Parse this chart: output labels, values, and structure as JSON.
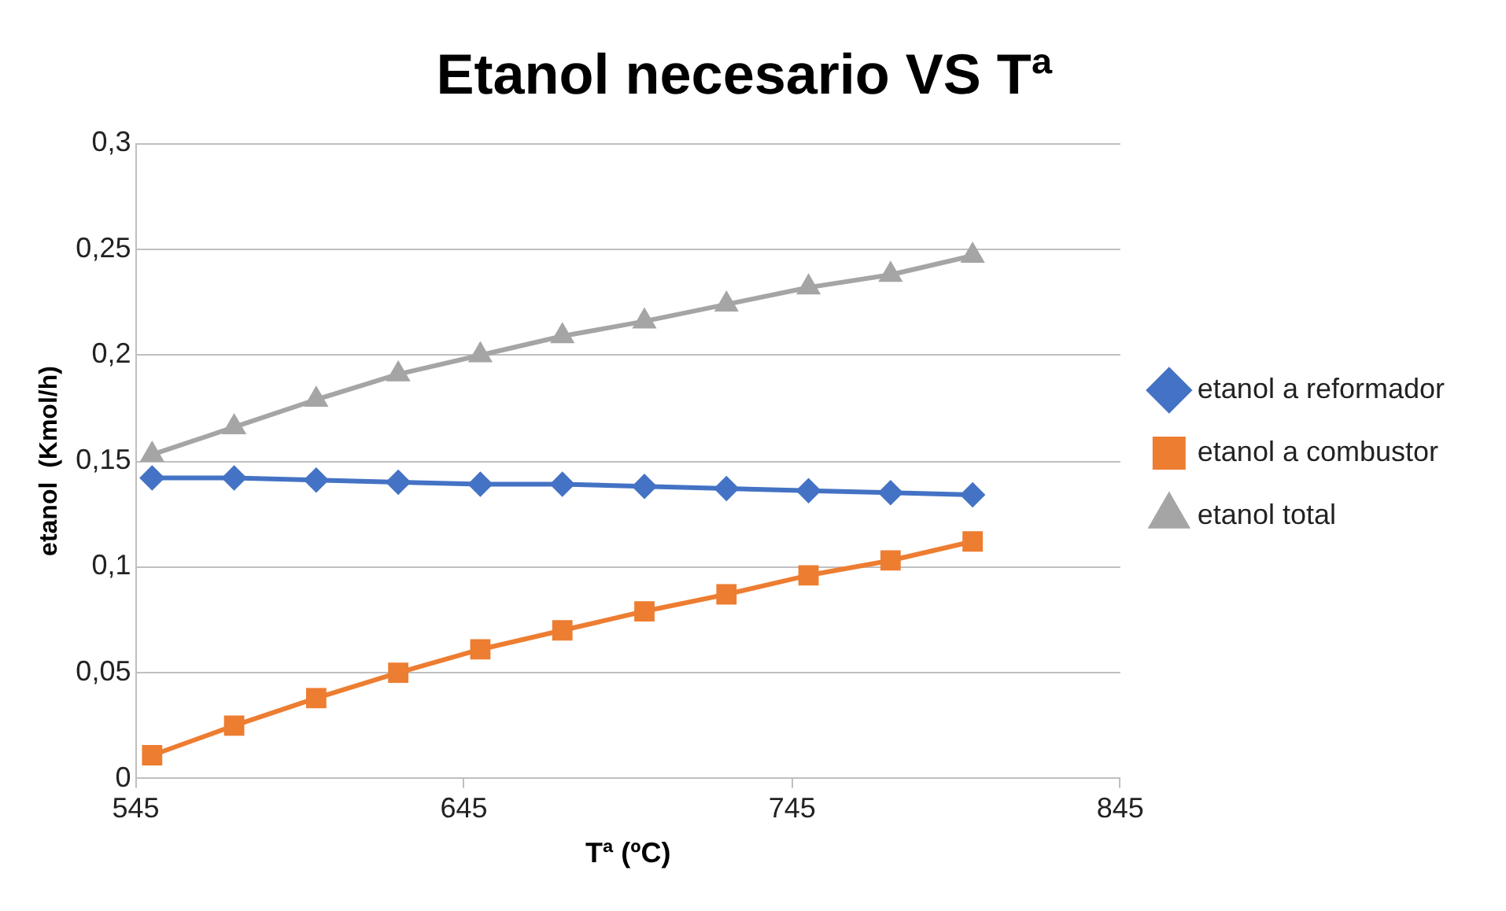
{
  "chart_data": {
    "type": "line",
    "title": "Etanol necesario VS Tª",
    "xlabel": "Tª (ºC)",
    "ylabel": "etanol  (Kmol/h)",
    "x": [
      550,
      575,
      600,
      625,
      650,
      675,
      700,
      725,
      750,
      775,
      800
    ],
    "xlim": [
      545,
      845
    ],
    "xticks": [
      545,
      645,
      745,
      845
    ],
    "ylim": [
      0,
      0.3
    ],
    "yticks": [
      {
        "value": 0,
        "label": "0"
      },
      {
        "value": 0.05,
        "label": "0,05"
      },
      {
        "value": 0.1,
        "label": "0,1"
      },
      {
        "value": 0.15,
        "label": "0,15"
      },
      {
        "value": 0.2,
        "label": "0,2"
      },
      {
        "value": 0.25,
        "label": "0,25"
      },
      {
        "value": 0.3,
        "label": "0,3"
      }
    ],
    "grid": "y",
    "legend": "right",
    "series": [
      {
        "name": "etanol a reformador",
        "color": "#4472c4",
        "marker": "diamond",
        "values": [
          0.142,
          0.142,
          0.141,
          0.14,
          0.139,
          0.139,
          0.138,
          0.137,
          0.136,
          0.135,
          0.134
        ]
      },
      {
        "name": "etanol a combustor",
        "color": "#ed7d31",
        "marker": "square",
        "values": [
          0.011,
          0.025,
          0.038,
          0.05,
          0.061,
          0.07,
          0.079,
          0.087,
          0.096,
          0.103,
          0.112
        ]
      },
      {
        "name": "etanol total",
        "color": "#a5a5a5",
        "marker": "triangle",
        "values": [
          0.153,
          0.166,
          0.179,
          0.191,
          0.2,
          0.209,
          0.216,
          0.224,
          0.232,
          0.238,
          0.247
        ]
      }
    ]
  }
}
